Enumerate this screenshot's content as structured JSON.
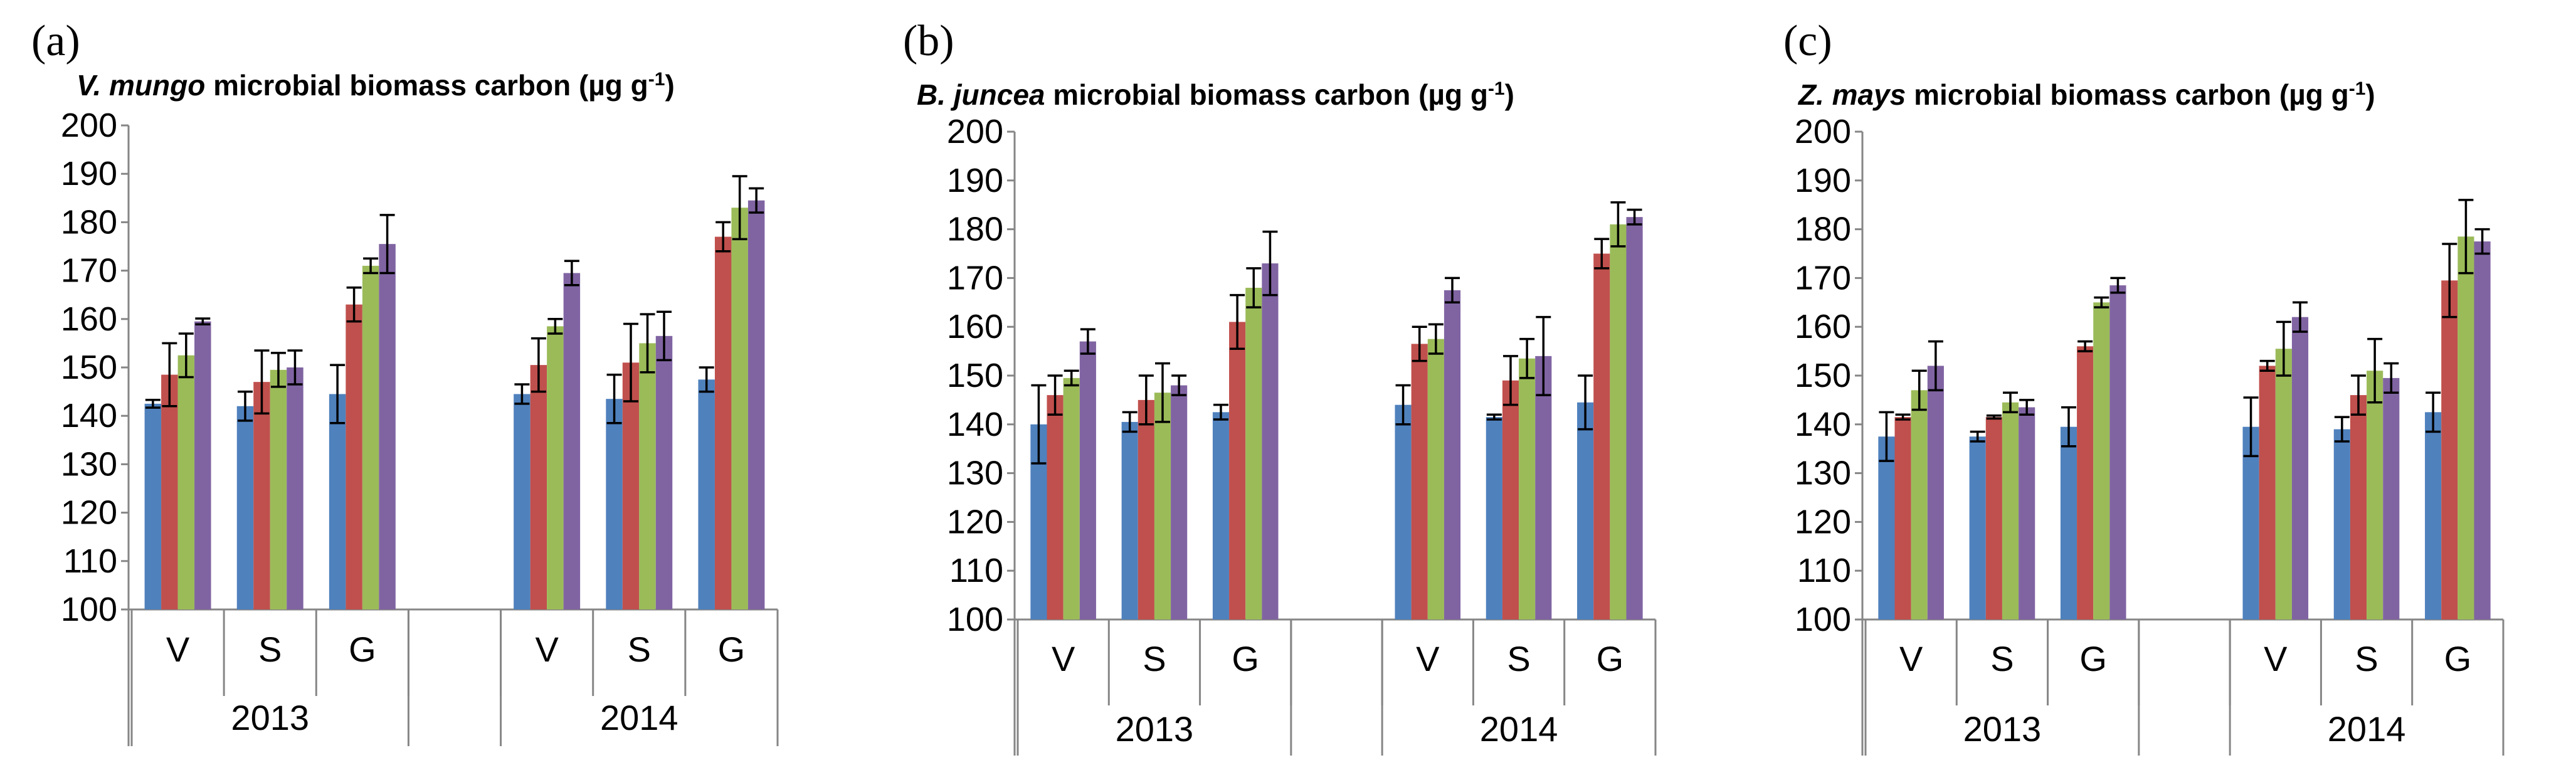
{
  "colors": {
    "series": [
      "#4F81BD",
      "#C0504D",
      "#9BBB59",
      "#8064A2"
    ],
    "axis": "#868686",
    "error": "#000000"
  },
  "chart_data": [
    {
      "type": "bar",
      "panel_label": "(a)",
      "title_italic": "V. mungo",
      "title_rest": " microbial biomass carbon (µg g",
      "title_sup": "-1",
      "title_end": ")",
      "categories": [
        "V",
        "S",
        "G",
        "",
        "V",
        "S",
        "G"
      ],
      "groups": [
        {
          "label": "2013",
          "span": [
            0,
            3
          ]
        },
        {
          "label": "2014",
          "span": [
            4,
            7
          ]
        }
      ],
      "ylim": [
        100,
        200
      ],
      "yticks": [
        "100",
        "110",
        "120",
        "130",
        "140",
        "150",
        "160",
        "170",
        "180",
        "190",
        "200"
      ],
      "series": [
        {
          "name": "series-1",
          "values": [
            142.5,
            142.0,
            144.5,
            null,
            144.5,
            143.5,
            147.5
          ],
          "errors": [
            0.8,
            3.0,
            6.0,
            null,
            2.0,
            5.0,
            2.5
          ]
        },
        {
          "name": "series-2",
          "values": [
            148.5,
            147.0,
            163.0,
            null,
            150.5,
            151.0,
            177.0
          ],
          "errors": [
            6.5,
            6.5,
            3.5,
            null,
            5.5,
            8.0,
            3.0
          ]
        },
        {
          "name": "series-3",
          "values": [
            152.5,
            149.5,
            171.0,
            null,
            158.5,
            155.0,
            183.0
          ],
          "errors": [
            4.5,
            3.5,
            1.5,
            null,
            1.5,
            6.0,
            6.5
          ]
        },
        {
          "name": "series-4",
          "values": [
            159.5,
            150.0,
            175.5,
            null,
            169.5,
            156.5,
            184.5
          ],
          "errors": [
            0.6,
            3.5,
            6.0,
            null,
            2.5,
            5.0,
            2.5
          ]
        }
      ]
    },
    {
      "type": "bar",
      "panel_label": "(b)",
      "title_italic": "B. juncea",
      "title_rest": " microbial biomass carbon (µg g",
      "title_sup": "-1",
      "title_end": ")",
      "categories": [
        "V",
        "S",
        "G",
        "",
        "V",
        "S",
        "G"
      ],
      "groups": [
        {
          "label": "2013",
          "span": [
            0,
            3
          ]
        },
        {
          "label": "2014",
          "span": [
            4,
            7
          ]
        }
      ],
      "ylim": [
        100,
        200
      ],
      "yticks": [
        "100",
        "110",
        "120",
        "130",
        "140",
        "150",
        "160",
        "170",
        "180",
        "190",
        "200"
      ],
      "series": [
        {
          "name": "series-1",
          "values": [
            140.0,
            140.5,
            142.5,
            null,
            144.0,
            141.5,
            144.5
          ],
          "errors": [
            8.0,
            2.0,
            1.5,
            null,
            4.0,
            0.5,
            5.5
          ]
        },
        {
          "name": "series-2",
          "values": [
            146.0,
            145.0,
            161.0,
            null,
            156.5,
            149.0,
            175.0
          ],
          "errors": [
            4.0,
            5.0,
            5.5,
            null,
            3.5,
            5.0,
            3.0
          ]
        },
        {
          "name": "series-3",
          "values": [
            149.5,
            146.5,
            168.0,
            null,
            157.5,
            153.5,
            181.0
          ],
          "errors": [
            1.5,
            6.0,
            4.0,
            null,
            3.0,
            4.0,
            4.5
          ]
        },
        {
          "name": "series-4",
          "values": [
            157.0,
            148.0,
            173.0,
            null,
            167.5,
            154.0,
            182.5
          ],
          "errors": [
            2.5,
            2.0,
            6.5,
            null,
            2.5,
            8.0,
            1.5
          ]
        }
      ]
    },
    {
      "type": "bar",
      "panel_label": "(c)",
      "title_italic": "Z. mays",
      "title_rest": " microbial biomass carbon (µg g",
      "title_sup": "-1",
      "title_end": ")",
      "categories": [
        "V",
        "S",
        "G",
        "",
        "V",
        "S",
        "G"
      ],
      "groups": [
        {
          "label": "2013",
          "span": [
            0,
            3
          ]
        },
        {
          "label": "2014",
          "span": [
            4,
            7
          ]
        }
      ],
      "ylim": [
        100,
        200
      ],
      "yticks": [
        "100",
        "110",
        "120",
        "130",
        "140",
        "150",
        "160",
        "170",
        "180",
        "190",
        "200"
      ],
      "series": [
        {
          "name": "series-1",
          "values": [
            137.5,
            137.5,
            139.5,
            null,
            139.5,
            139.0,
            142.5
          ],
          "errors": [
            5.0,
            1.0,
            4.0,
            null,
            6.0,
            2.5,
            4.0
          ]
        },
        {
          "name": "series-2",
          "values": [
            141.5,
            141.5,
            156.0,
            null,
            152.0,
            146.0,
            169.5
          ],
          "errors": [
            0.5,
            0.3,
            1.0,
            null,
            1.0,
            4.0,
            7.5
          ]
        },
        {
          "name": "series-3",
          "values": [
            147.0,
            144.5,
            165.0,
            null,
            155.5,
            151.0,
            178.5
          ],
          "errors": [
            4.0,
            2.0,
            1.0,
            null,
            5.5,
            6.5,
            7.5
          ]
        },
        {
          "name": "series-4",
          "values": [
            152.0,
            143.5,
            168.5,
            null,
            162.0,
            149.5,
            177.5
          ],
          "errors": [
            5.0,
            1.5,
            1.5,
            null,
            3.0,
            3.0,
            2.5
          ]
        }
      ]
    }
  ]
}
